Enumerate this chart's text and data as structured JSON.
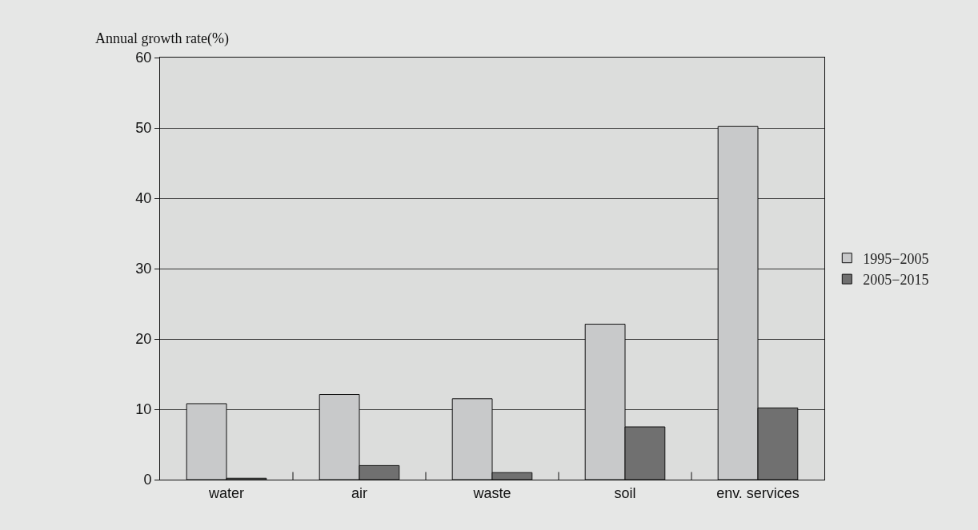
{
  "chart_data": {
    "type": "bar",
    "ylabel": "Annual growth rate(%)",
    "categories": [
      "water",
      "air",
      "waste",
      "soil",
      "env. services"
    ],
    "series": [
      {
        "name": "1995−2005",
        "color": "#c8c9ca",
        "values": [
          10.8,
          12.1,
          11.5,
          22.1,
          50.2
        ]
      },
      {
        "name": "2005−2015",
        "color": "#707070",
        "values": [
          0.2,
          2.0,
          1.0,
          7.5,
          10.2
        ]
      }
    ],
    "ylim": [
      0,
      60
    ],
    "yticks": [
      0,
      10,
      20,
      30,
      40,
      50,
      60
    ],
    "grid": "y",
    "legend": "right"
  }
}
